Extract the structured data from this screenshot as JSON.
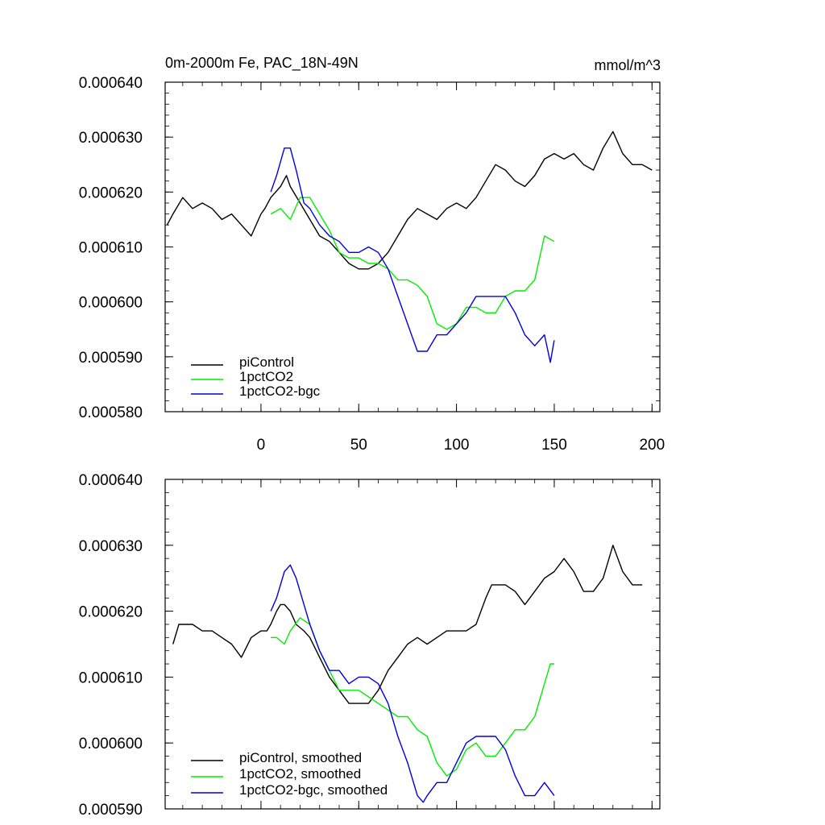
{
  "figure": {
    "title": "0m-2000m Fe, PAC_18N-49N",
    "units": "mmol/m^3"
  },
  "chart_data": [
    {
      "type": "line",
      "ylim": [
        0.00058,
        0.00064
      ],
      "xlim": [
        -49,
        204
      ],
      "yticks": [
        0.00058,
        0.00059,
        0.0006,
        0.00061,
        0.00062,
        0.00063,
        0.00064
      ],
      "ytick_labels": [
        "0.000580",
        "0.000590",
        "0.000600",
        "0.000610",
        "0.000620",
        "0.000630",
        "0.000640"
      ],
      "xticks": [
        0,
        50,
        100,
        150,
        200
      ],
      "xtick_labels": [
        "0",
        "50",
        "100",
        "150",
        "200"
      ],
      "legend_position": "bottom-left",
      "series": [
        {
          "name": "piControl",
          "color": "#000000",
          "x": [
            -48,
            -45,
            -40,
            -35,
            -30,
            -25,
            -20,
            -15,
            -10,
            -5,
            0,
            2,
            5,
            10,
            13,
            15,
            20,
            25,
            30,
            35,
            40,
            45,
            50,
            55,
            60,
            65,
            70,
            75,
            80,
            85,
            90,
            95,
            100,
            105,
            110,
            115,
            120,
            125,
            130,
            135,
            140,
            145,
            150,
            155,
            160,
            165,
            170,
            175,
            180,
            185,
            190,
            195,
            200
          ],
          "y": [
            0.000614,
            0.000616,
            0.000619,
            0.000617,
            0.000618,
            0.000617,
            0.000615,
            0.000616,
            0.000614,
            0.000612,
            0.000616,
            0.000617,
            0.000619,
            0.000621,
            0.000623,
            0.000621,
            0.000618,
            0.000615,
            0.000612,
            0.000611,
            0.000609,
            0.000607,
            0.000606,
            0.000606,
            0.000607,
            0.000609,
            0.000612,
            0.000615,
            0.000617,
            0.000616,
            0.000615,
            0.000617,
            0.000618,
            0.000617,
            0.000619,
            0.000622,
            0.000625,
            0.000624,
            0.000622,
            0.000621,
            0.000623,
            0.000626,
            0.000627,
            0.000626,
            0.000627,
            0.000625,
            0.000624,
            0.000628,
            0.000631,
            0.000627,
            0.000625,
            0.000625,
            0.000624
          ]
        },
        {
          "name": "1pctCO2",
          "color": "#00ee00",
          "x": [
            5,
            10,
            15,
            20,
            25,
            30,
            35,
            40,
            45,
            50,
            55,
            60,
            65,
            70,
            75,
            80,
            85,
            90,
            95,
            100,
            105,
            110,
            115,
            120,
            125,
            130,
            135,
            140,
            145,
            150
          ],
          "y": [
            0.000616,
            0.000617,
            0.000615,
            0.000619,
            0.000619,
            0.000616,
            0.000613,
            0.000609,
            0.000608,
            0.000608,
            0.000607,
            0.000607,
            0.000606,
            0.000604,
            0.000604,
            0.000603,
            0.000601,
            0.000596,
            0.000595,
            0.000596,
            0.000599,
            0.000599,
            0.000598,
            0.000598,
            0.000601,
            0.000602,
            0.000602,
            0.000604,
            0.000612,
            0.000611
          ]
        },
        {
          "name": "1pctCO2-bgc",
          "color": "#0000dd",
          "x": [
            5,
            8,
            12,
            15,
            18,
            22,
            25,
            30,
            35,
            40,
            45,
            50,
            55,
            60,
            65,
            70,
            75,
            80,
            85,
            90,
            95,
            100,
            105,
            110,
            115,
            120,
            125,
            130,
            135,
            140,
            145,
            148,
            150
          ],
          "y": [
            0.00062,
            0.000623,
            0.000628,
            0.000628,
            0.000624,
            0.000618,
            0.000617,
            0.000614,
            0.000612,
            0.000611,
            0.000609,
            0.000609,
            0.00061,
            0.000609,
            0.000606,
            0.000601,
            0.000596,
            0.000591,
            0.000591,
            0.000594,
            0.000594,
            0.000596,
            0.000598,
            0.000601,
            0.000601,
            0.000601,
            0.000601,
            0.000598,
            0.000594,
            0.000592,
            0.000594,
            0.000589,
            0.000593
          ]
        }
      ]
    },
    {
      "type": "line",
      "ylim": [
        0.00059,
        0.00064
      ],
      "xlim": [
        -49,
        204
      ],
      "yticks": [
        0.00059,
        0.0006,
        0.00061,
        0.00062,
        0.00063,
        0.00064
      ],
      "ytick_labels": [
        "0.000590",
        "0.000600",
        "0.000610",
        "0.000620",
        "0.000630",
        "0.000640"
      ],
      "xticks": [
        0,
        50,
        100,
        150,
        200
      ],
      "legend_position": "bottom-left",
      "series": [
        {
          "name": "piControl, smoothed",
          "color": "#000000",
          "x": [
            -45,
            -42,
            -38,
            -35,
            -30,
            -25,
            -20,
            -15,
            -10,
            -5,
            0,
            3,
            5,
            8,
            10,
            12,
            15,
            18,
            22,
            25,
            30,
            35,
            40,
            45,
            50,
            55,
            60,
            65,
            70,
            75,
            80,
            85,
            90,
            95,
            100,
            105,
            110,
            115,
            118,
            120,
            125,
            130,
            135,
            140,
            145,
            150,
            155,
            160,
            165,
            170,
            175,
            180,
            185,
            190,
            195
          ],
          "y": [
            0.000615,
            0.000618,
            0.000618,
            0.000618,
            0.000617,
            0.000617,
            0.000616,
            0.000615,
            0.000613,
            0.000616,
            0.000617,
            0.000617,
            0.000618,
            0.00062,
            0.000621,
            0.000621,
            0.00062,
            0.000618,
            0.000617,
            0.000616,
            0.000613,
            0.00061,
            0.000608,
            0.000606,
            0.000606,
            0.000606,
            0.000608,
            0.000611,
            0.000613,
            0.000615,
            0.000616,
            0.000615,
            0.000616,
            0.000617,
            0.000617,
            0.000617,
            0.000618,
            0.000622,
            0.000624,
            0.000624,
            0.000624,
            0.000623,
            0.000621,
            0.000623,
            0.000625,
            0.000626,
            0.000628,
            0.000626,
            0.000623,
            0.000623,
            0.000625,
            0.00063,
            0.000626,
            0.000624,
            0.000624
          ]
        },
        {
          "name": "1pctCO2, smoothed",
          "color": "#00ee00",
          "x": [
            5,
            8,
            12,
            15,
            20,
            25,
            30,
            35,
            40,
            45,
            50,
            55,
            60,
            65,
            70,
            75,
            80,
            85,
            90,
            95,
            100,
            105,
            110,
            115,
            120,
            125,
            130,
            135,
            140,
            145,
            148,
            150
          ],
          "y": [
            0.000616,
            0.000616,
            0.000615,
            0.000617,
            0.000619,
            0.000618,
            0.000614,
            0.000611,
            0.000608,
            0.000608,
            0.000608,
            0.000607,
            0.000606,
            0.000605,
            0.000604,
            0.000604,
            0.000602,
            0.000601,
            0.000597,
            0.000595,
            0.000596,
            0.000599,
            0.0006,
            0.000598,
            0.000598,
            0.0006,
            0.000602,
            0.000602,
            0.000604,
            0.000609,
            0.000612,
            0.000612
          ]
        },
        {
          "name": "1pctCO2-bgc, smoothed",
          "color": "#0000dd",
          "x": [
            5,
            8,
            12,
            15,
            18,
            22,
            25,
            30,
            35,
            40,
            45,
            50,
            55,
            60,
            65,
            70,
            75,
            80,
            83,
            85,
            90,
            95,
            100,
            105,
            110,
            115,
            120,
            125,
            130,
            135,
            140,
            145,
            150
          ],
          "y": [
            0.00062,
            0.000622,
            0.000626,
            0.000627,
            0.000625,
            0.000621,
            0.000618,
            0.000614,
            0.000611,
            0.000611,
            0.000609,
            0.00061,
            0.00061,
            0.000609,
            0.000606,
            0.000601,
            0.000597,
            0.000592,
            0.000591,
            0.000592,
            0.000594,
            0.000594,
            0.000597,
            0.0006,
            0.000601,
            0.000601,
            0.000601,
            0.000599,
            0.000595,
            0.000592,
            0.000592,
            0.000594,
            0.000592
          ]
        }
      ]
    }
  ]
}
